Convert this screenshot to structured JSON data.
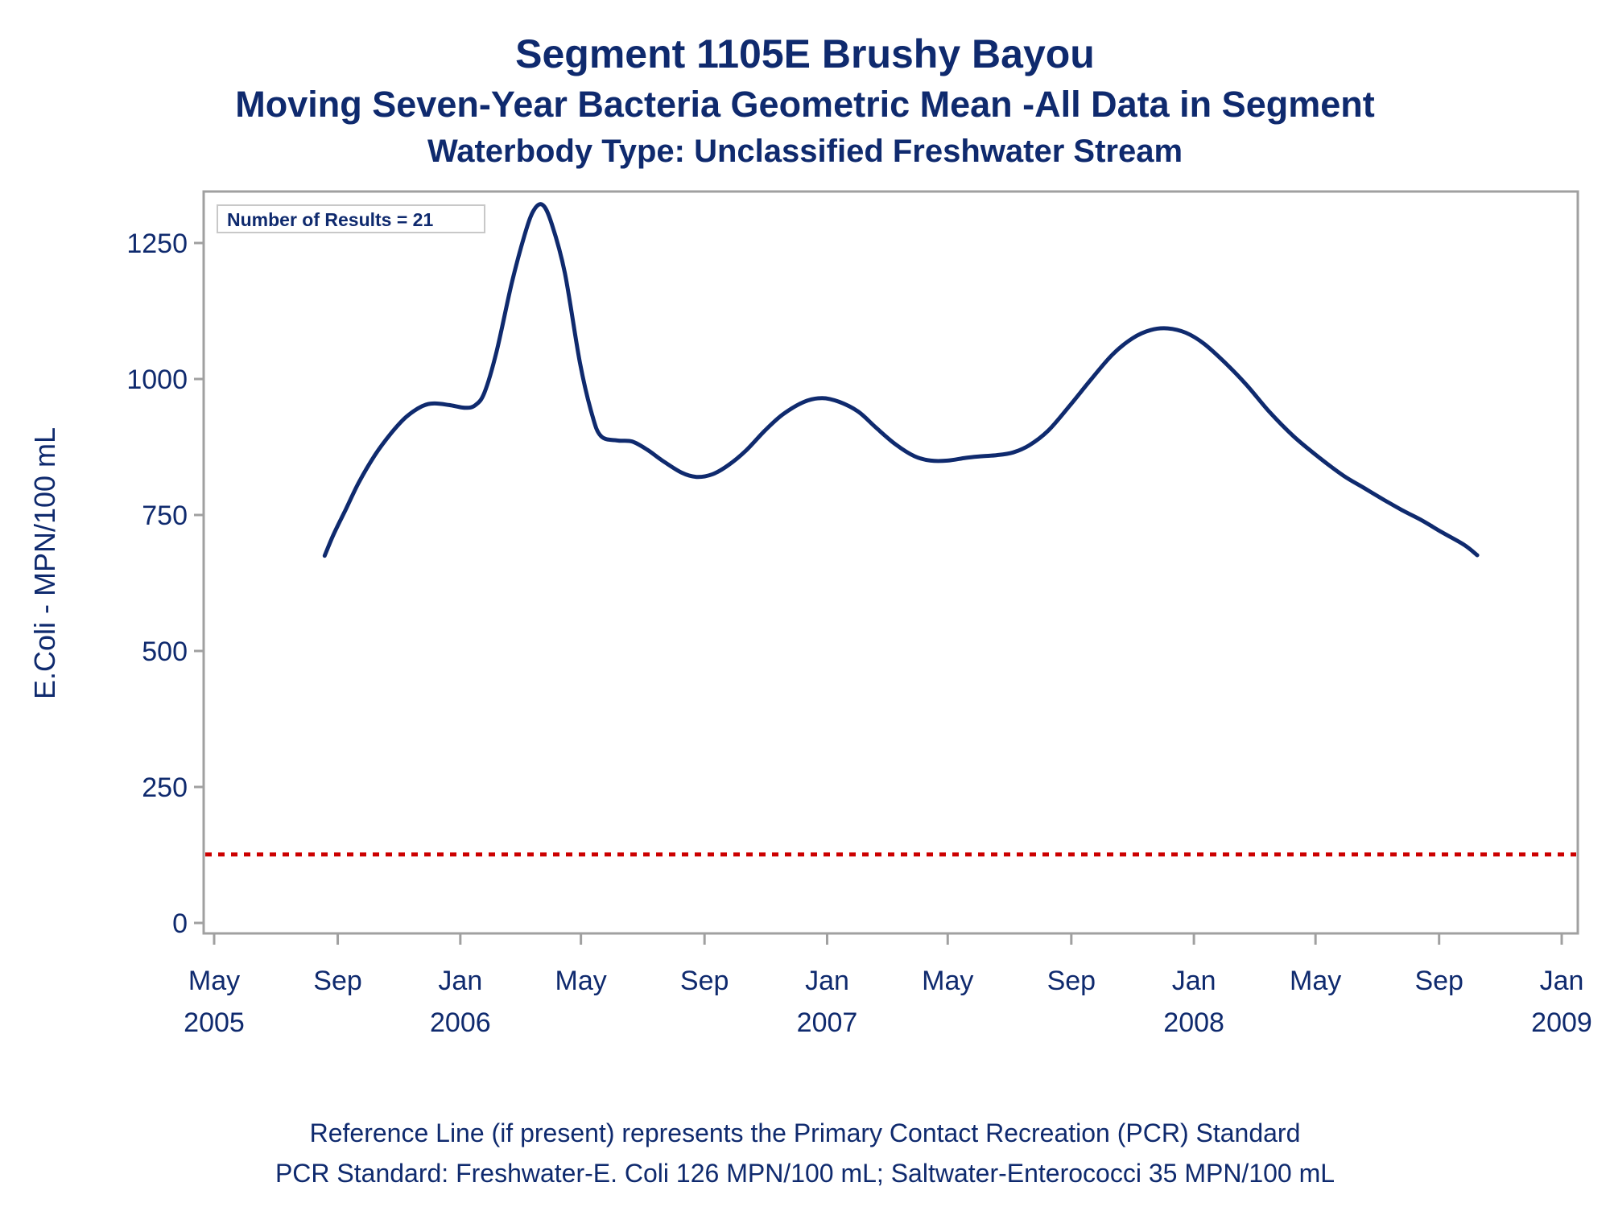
{
  "titles": {
    "line1": "Segment 1105E    Brushy Bayou",
    "line2": "Moving Seven-Year Bacteria Geometric Mean -All Data in Segment",
    "line3": "Waterbody Type: Unclassified Freshwater Stream"
  },
  "footer": {
    "line1": "Reference Line (if present) represents the Primary Contact Recreation (PCR) Standard",
    "line2": "PCR Standard: Freshwater-E. Coli 126 MPN/100 mL; Saltwater-Enterococci 35 MPN/100 mL"
  },
  "colors": {
    "series": "#0f2a6e",
    "reference_line": "#cc0000",
    "frame": "#a0a0a0",
    "text": "#0f2a6e"
  },
  "chart_data": {
    "type": "line",
    "ylabel": "E.Coli - MPN/100 mL",
    "xlabel": "",
    "ylim": [
      -30,
      1350
    ],
    "yticks": [
      0,
      250,
      500,
      750,
      1000,
      1250
    ],
    "xlim": [
      "2005-05-01",
      "2009-01-01"
    ],
    "xticks": [
      {
        "date": "2005-05-01",
        "label": "May",
        "year": "2005"
      },
      {
        "date": "2005-09-01",
        "label": "Sep",
        "year": ""
      },
      {
        "date": "2006-01-01",
        "label": "Jan",
        "year": "2006"
      },
      {
        "date": "2006-05-01",
        "label": "May",
        "year": ""
      },
      {
        "date": "2006-09-01",
        "label": "Sep",
        "year": ""
      },
      {
        "date": "2007-01-01",
        "label": "Jan",
        "year": "2007"
      },
      {
        "date": "2007-05-01",
        "label": "May",
        "year": ""
      },
      {
        "date": "2007-09-01",
        "label": "Sep",
        "year": ""
      },
      {
        "date": "2008-01-01",
        "label": "Jan",
        "year": "2008"
      },
      {
        "date": "2008-05-01",
        "label": "May",
        "year": ""
      },
      {
        "date": "2008-09-01",
        "label": "Sep",
        "year": ""
      },
      {
        "date": "2009-01-01",
        "label": "Jan",
        "year": "2009"
      }
    ],
    "annotation": "Number of Results = 21",
    "reference_line": {
      "value": 126,
      "style": "dotted"
    },
    "grid": false,
    "series": [
      {
        "points": [
          [
            "2005-08-19",
            675
          ],
          [
            "2005-08-28",
            715
          ],
          [
            "2005-09-09",
            760
          ],
          [
            "2005-09-22",
            810
          ],
          [
            "2005-10-08",
            860
          ],
          [
            "2005-10-24",
            900
          ],
          [
            "2005-11-08",
            930
          ],
          [
            "2005-11-24",
            950
          ],
          [
            "2005-12-06",
            955
          ],
          [
            "2005-12-21",
            952
          ],
          [
            "2006-01-06",
            947
          ],
          [
            "2006-01-16",
            952
          ],
          [
            "2006-01-25",
            975
          ],
          [
            "2006-02-06",
            1050
          ],
          [
            "2006-02-21",
            1175
          ],
          [
            "2006-03-06",
            1265
          ],
          [
            "2006-03-15",
            1310
          ],
          [
            "2006-03-24",
            1320
          ],
          [
            "2006-04-02",
            1285
          ],
          [
            "2006-04-15",
            1195
          ],
          [
            "2006-04-30",
            1030
          ],
          [
            "2006-05-12",
            935
          ],
          [
            "2006-05-21",
            895
          ],
          [
            "2006-06-06",
            887
          ],
          [
            "2006-06-21",
            885
          ],
          [
            "2006-07-06",
            870
          ],
          [
            "2006-07-21",
            850
          ],
          [
            "2006-08-09",
            828
          ],
          [
            "2006-08-24",
            820
          ],
          [
            "2006-09-09",
            825
          ],
          [
            "2006-09-25",
            842
          ],
          [
            "2006-10-12",
            868
          ],
          [
            "2006-10-31",
            905
          ],
          [
            "2006-11-18",
            935
          ],
          [
            "2006-12-09",
            958
          ],
          [
            "2006-12-27",
            965
          ],
          [
            "2007-01-13",
            958
          ],
          [
            "2007-02-01",
            940
          ],
          [
            "2007-02-19",
            910
          ],
          [
            "2007-03-10",
            880
          ],
          [
            "2007-03-29",
            858
          ],
          [
            "2007-04-14",
            850
          ],
          [
            "2007-05-01",
            850
          ],
          [
            "2007-05-19",
            855
          ],
          [
            "2007-06-04",
            858
          ],
          [
            "2007-06-19",
            860
          ],
          [
            "2007-07-05",
            865
          ],
          [
            "2007-07-21",
            878
          ],
          [
            "2007-08-09",
            905
          ],
          [
            "2007-08-30",
            950
          ],
          [
            "2007-09-21",
            1000
          ],
          [
            "2007-10-12",
            1045
          ],
          [
            "2007-11-01",
            1075
          ],
          [
            "2007-11-19",
            1090
          ],
          [
            "2007-12-06",
            1093
          ],
          [
            "2007-12-24",
            1085
          ],
          [
            "2008-01-11",
            1065
          ],
          [
            "2008-02-01",
            1030
          ],
          [
            "2008-02-22",
            990
          ],
          [
            "2008-03-16",
            940
          ],
          [
            "2008-04-09",
            895
          ],
          [
            "2008-05-05",
            855
          ],
          [
            "2008-05-29",
            822
          ],
          [
            "2008-06-18",
            800
          ],
          [
            "2008-07-08",
            778
          ],
          [
            "2008-07-27",
            758
          ],
          [
            "2008-08-15",
            740
          ],
          [
            "2008-09-04",
            718
          ],
          [
            "2008-09-26",
            695
          ],
          [
            "2008-10-09",
            676
          ]
        ]
      }
    ]
  }
}
